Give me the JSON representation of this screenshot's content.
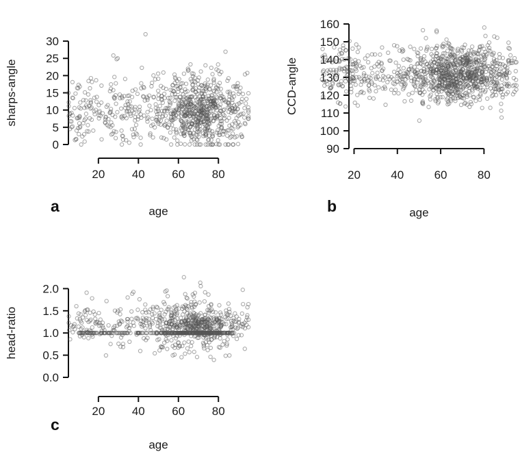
{
  "chart_data": [
    {
      "type": "scatter",
      "panel_label": "a",
      "xlabel": "age",
      "ylabel": "sharps-angle",
      "x_ticks": [
        20,
        40,
        60,
        80
      ],
      "y_ticks": [
        0,
        5,
        10,
        15,
        20,
        25,
        30
      ],
      "xlim": [
        5,
        96
      ],
      "ylim": [
        0,
        32
      ],
      "point_color": "#555555",
      "distribution": {
        "n": 900,
        "x_min": 5,
        "x_max": 95,
        "dense_x_center": 70,
        "dense_x_sd": 10,
        "y_mean": 10,
        "y_sd": 5,
        "y_min": 0,
        "y_max": 32
      }
    },
    {
      "type": "scatter",
      "panel_label": "b",
      "xlabel": "age",
      "ylabel": "CCD-angle",
      "x_ticks": [
        20,
        40,
        60,
        80
      ],
      "y_ticks": [
        90,
        100,
        110,
        120,
        130,
        140,
        150,
        160
      ],
      "xlim": [
        5,
        96
      ],
      "ylim": [
        90,
        160
      ],
      "point_color": "#555555",
      "distribution": {
        "n": 1100,
        "x_min": 5,
        "x_max": 95,
        "dense_x_center": 68,
        "dense_x_sd": 10,
        "y_mean": 132,
        "y_sd": 8,
        "y_min": 92,
        "y_max": 158
      }
    },
    {
      "type": "scatter",
      "panel_label": "c",
      "xlabel": "age",
      "ylabel": "head-ratio",
      "x_ticks": [
        20,
        40,
        60,
        80
      ],
      "y_ticks": [
        "0.0",
        "0.5",
        "1.0",
        "1.5",
        "2.0"
      ],
      "xlim": [
        5,
        96
      ],
      "ylim": [
        0,
        2.3
      ],
      "point_color": "#555555",
      "distribution": {
        "n": 1000,
        "x_min": 5,
        "x_max": 95,
        "dense_x_center": 68,
        "dense_x_sd": 10,
        "y_mean": 1.2,
        "y_sd": 0.3,
        "y_min": 0.0,
        "y_max": 2.3,
        "stack_value": 1.0,
        "stack_fraction": 0.35
      }
    }
  ]
}
